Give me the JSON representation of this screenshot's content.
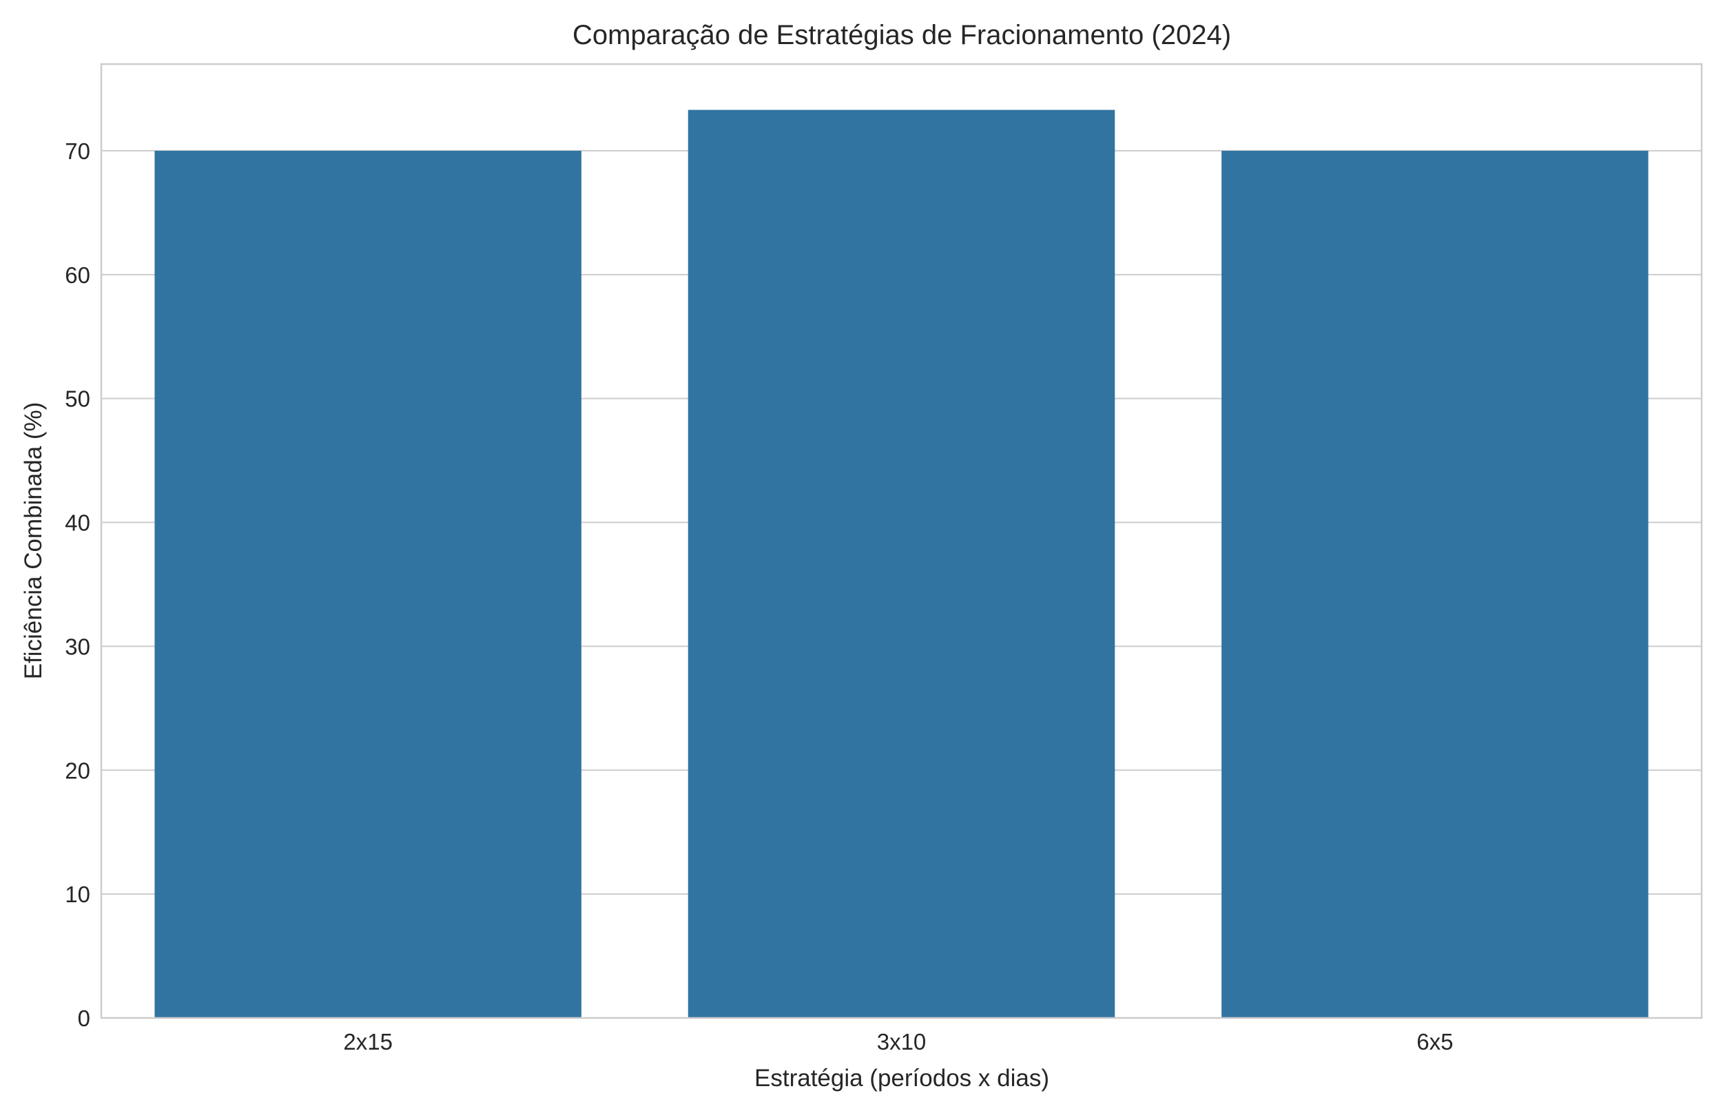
{
  "chart_data": {
    "type": "bar",
    "title": "Comparação de Estratégias de Fracionamento (2024)",
    "xlabel": "Estratégia (períodos x dias)",
    "ylabel": "Eficiência Combinada (%)",
    "categories": [
      "2x15",
      "3x10",
      "6x5"
    ],
    "values": [
      70.0,
      73.3,
      70.0
    ],
    "ylim": [
      0,
      77
    ],
    "yticks": [
      0,
      10,
      20,
      30,
      40,
      50,
      60,
      70
    ],
    "grid": "horizontal",
    "bar_color": "#3274a1"
  }
}
